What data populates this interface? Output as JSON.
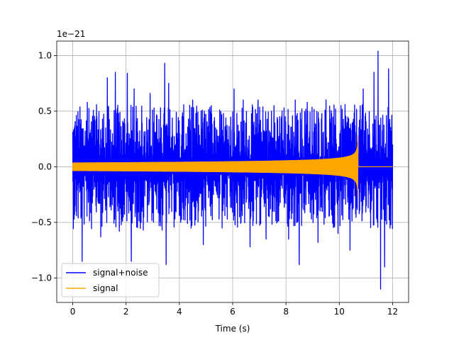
{
  "chart_data": {
    "type": "line",
    "title": "",
    "xlabel": "Time (s)",
    "ylabel": "",
    "offset_label": "1e−21",
    "xlim": [
      -0.6,
      12.6
    ],
    "ylim": [
      -1.22,
      1.13
    ],
    "xticks": [
      0,
      2,
      4,
      6,
      8,
      10,
      12
    ],
    "xtick_labels": [
      "0",
      "2",
      "4",
      "6",
      "8",
      "10",
      "12"
    ],
    "yticks": [
      -1.0,
      -0.5,
      0.0,
      0.5,
      1.0
    ],
    "ytick_labels": [
      "−1.0",
      "−0.5",
      "0.0",
      "0.5",
      "1.0"
    ],
    "grid": true,
    "legend_position": "lower-left",
    "series": [
      {
        "name": "signal+noise",
        "color": "#0000ff",
        "x_range": [
          0,
          12
        ],
        "y_min": -1.1,
        "y_max": 1.04,
        "extremes": [
          {
            "x": 0.08,
            "y": -0.35
          },
          {
            "x": 0.35,
            "y": -0.85
          },
          {
            "x": 0.55,
            "y": 0.58
          },
          {
            "x": 1.05,
            "y": -0.63
          },
          {
            "x": 1.3,
            "y": 0.8
          },
          {
            "x": 1.6,
            "y": 0.85
          },
          {
            "x": 1.75,
            "y": -0.58
          },
          {
            "x": 2.05,
            "y": 0.84
          },
          {
            "x": 2.2,
            "y": -0.85
          },
          {
            "x": 2.3,
            "y": 0.7
          },
          {
            "x": 2.65,
            "y": -0.57
          },
          {
            "x": 2.9,
            "y": 0.66
          },
          {
            "x": 3.35,
            "y": -0.57
          },
          {
            "x": 3.45,
            "y": 0.93
          },
          {
            "x": 3.5,
            "y": -0.88
          },
          {
            "x": 3.6,
            "y": 0.75
          },
          {
            "x": 4.05,
            "y": -0.5
          },
          {
            "x": 4.5,
            "y": 0.6
          },
          {
            "x": 4.9,
            "y": -0.7
          },
          {
            "x": 5.2,
            "y": 0.55
          },
          {
            "x": 5.6,
            "y": -0.55
          },
          {
            "x": 6.05,
            "y": 0.7
          },
          {
            "x": 6.4,
            "y": 0.6
          },
          {
            "x": 6.65,
            "y": -0.72
          },
          {
            "x": 6.95,
            "y": 0.6
          },
          {
            "x": 7.25,
            "y": -0.65
          },
          {
            "x": 7.55,
            "y": 0.55
          },
          {
            "x": 8.1,
            "y": -0.65
          },
          {
            "x": 8.35,
            "y": 0.6
          },
          {
            "x": 8.5,
            "y": -0.88
          },
          {
            "x": 8.8,
            "y": 0.58
          },
          {
            "x": 9.2,
            "y": -0.68
          },
          {
            "x": 9.5,
            "y": 0.6
          },
          {
            "x": 9.95,
            "y": -0.6
          },
          {
            "x": 10.4,
            "y": -0.75
          },
          {
            "x": 10.9,
            "y": 0.7
          },
          {
            "x": 11.3,
            "y": 0.85
          },
          {
            "x": 11.45,
            "y": 1.04
          },
          {
            "x": 11.55,
            "y": -1.1
          },
          {
            "x": 11.7,
            "y": -0.9
          },
          {
            "x": 11.85,
            "y": 0.88
          },
          {
            "x": 12.0,
            "y": 0.2
          }
        ]
      },
      {
        "name": "signal",
        "color": "#ffa500",
        "x_range": [
          0,
          12
        ],
        "amplitude_start": 0.035,
        "amplitude_peak": 0.28,
        "merger_time": 10.7,
        "post_merger_value": 0.0
      }
    ]
  }
}
